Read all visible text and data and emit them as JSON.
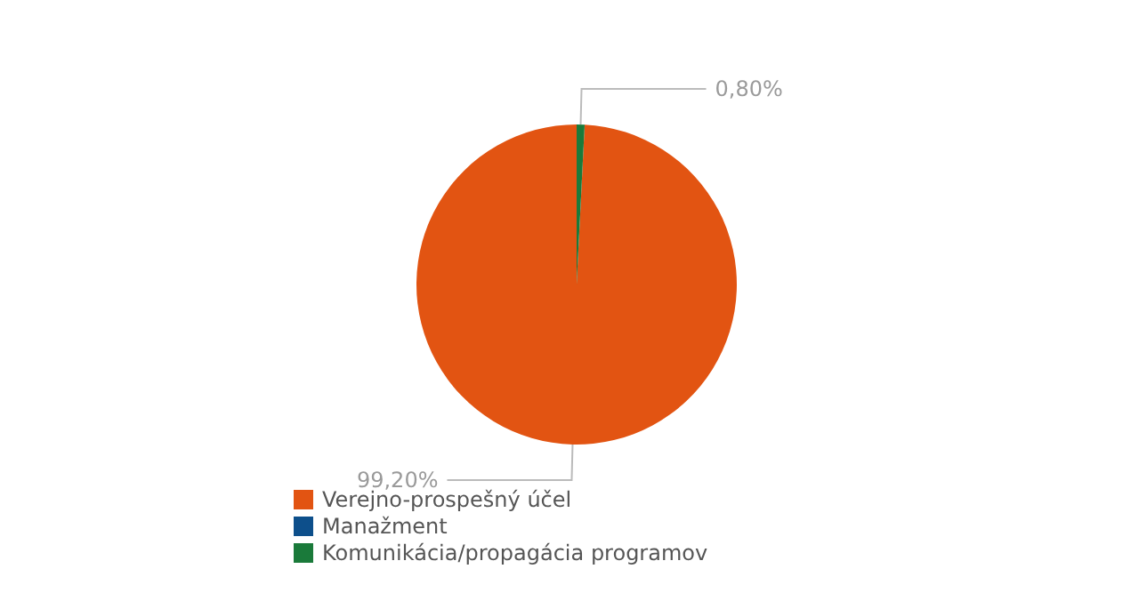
{
  "chart_data": {
    "type": "pie",
    "categories": [
      "Verejno-prospešný účel",
      "Manažment",
      "Komunikácia/propagácia programov"
    ],
    "values": [
      99.2,
      0,
      0.8
    ],
    "colors": [
      "#e25412",
      "#0d4f8b",
      "#1a7a3a"
    ],
    "value_labels": [
      "99,20%",
      null,
      "0,80%"
    ],
    "legend": "bottom left"
  }
}
